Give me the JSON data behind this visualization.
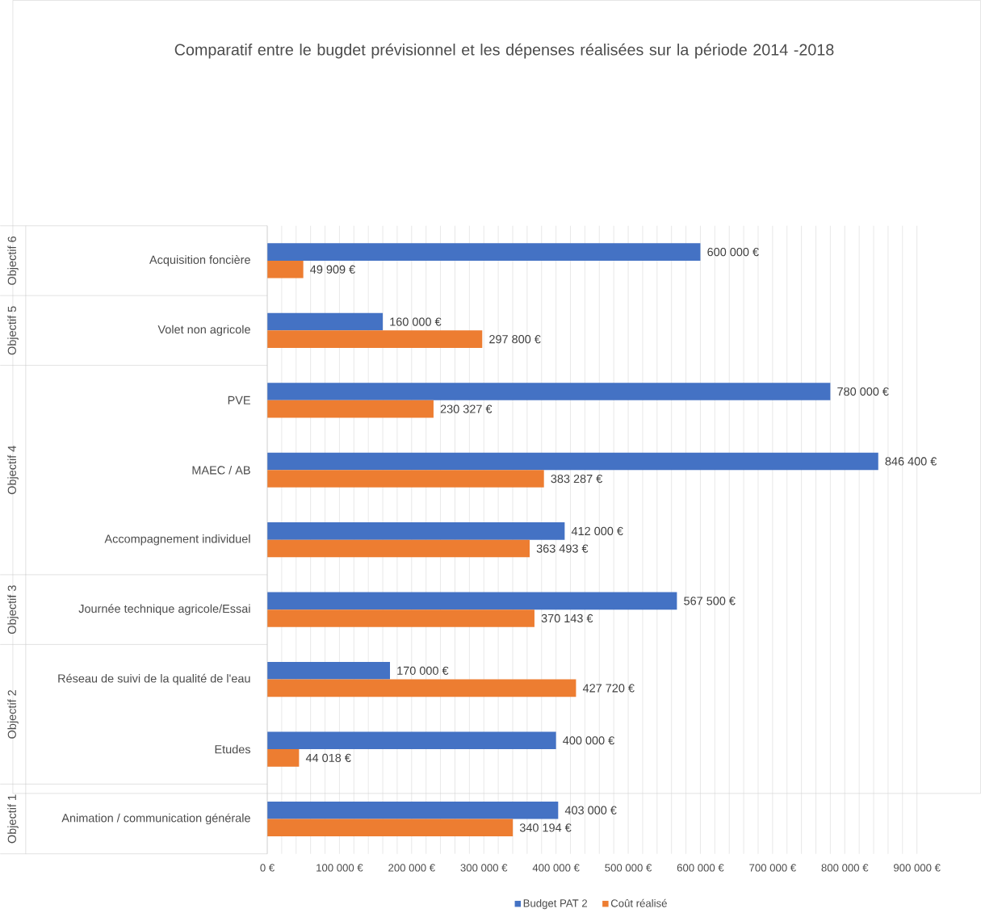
{
  "chart_data": {
    "type": "bar",
    "orientation": "horizontal",
    "title": "Comparatif entre le bugdet prévisionnel et les dépenses réalisées sur la période 2014 -2018",
    "categories": [
      "Acquisition foncière",
      "Volet non agricole",
      "PVE",
      "MAEC / AB",
      "Accompagnement individuel",
      "Journée technique agricole/Essai",
      "Réseau de suivi de la qualité de l'eau",
      "Etudes",
      "Animation / communication générale"
    ],
    "series": [
      {
        "name": "Budget PAT 2",
        "color": "#4472c4",
        "values": [
          600000,
          160000,
          780000,
          846400,
          412000,
          567500,
          170000,
          400000,
          403000
        ],
        "value_labels": [
          "600 000 €",
          "160 000 €",
          "780 000 €",
          "846 400 €",
          "412 000 €",
          "567 500 €",
          "170 000 €",
          "400 000 €",
          "403 000 €"
        ]
      },
      {
        "name": "Coût réalisé",
        "color": "#ed7d31",
        "values": [
          49909,
          297800,
          230327,
          383287,
          363493,
          370143,
          427720,
          44018,
          340194
        ],
        "value_labels": [
          "49 909 €",
          "297 800 €",
          "230 327 €",
          "383 287 €",
          "363 493 €",
          "370 143 €",
          "427 720 €",
          "44 018 €",
          "340 194 €"
        ]
      }
    ],
    "xlim": [
      0,
      900000
    ],
    "xticks": [
      {
        "value": 0,
        "label": "0 €"
      },
      {
        "value": 100000,
        "label": "100 000 €"
      },
      {
        "value": 200000,
        "label": "200 000 €"
      },
      {
        "value": 300000,
        "label": "300 000 €"
      },
      {
        "value": 400000,
        "label": "400 000 €"
      },
      {
        "value": 500000,
        "label": "500 000 €"
      },
      {
        "value": 600000,
        "label": "600 000 €"
      },
      {
        "value": 700000,
        "label": "700 000 €"
      },
      {
        "value": 800000,
        "label": "800 000 €"
      },
      {
        "value": 900000,
        "label": "900 000 €"
      }
    ],
    "annotations": [
      "Objectif 6",
      "Objectif 5",
      "Objectif 4",
      "Objectif 3",
      "Objectif 2",
      "Objectif 1"
    ],
    "grid": "x",
    "legend": "bottom"
  }
}
